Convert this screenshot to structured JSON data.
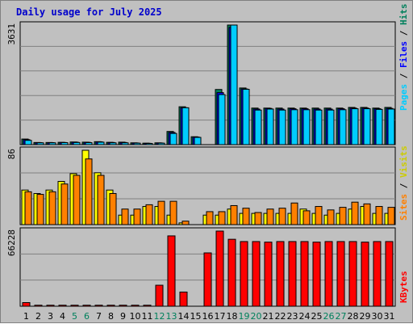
{
  "chart_data": [
    {
      "type": "bar",
      "title": "Daily usage for July 2025",
      "categories": [
        "1",
        "2",
        "3",
        "4",
        "5",
        "6",
        "7",
        "8",
        "9",
        "10",
        "11",
        "12",
        "13",
        "14",
        "15",
        "16",
        "17",
        "18",
        "19",
        "20",
        "21",
        "22",
        "23",
        "24",
        "25",
        "26",
        "27",
        "28",
        "29",
        "30",
        "31"
      ],
      "weekend_days": [
        "5",
        "6",
        "12",
        "13",
        "19",
        "20",
        "26",
        "27"
      ],
      "max_label": "3631",
      "ylim": [
        0,
        3631
      ],
      "series": [
        {
          "name": "Hits",
          "color": "#00805c",
          "values": [
            170,
            65,
            65,
            70,
            80,
            75,
            90,
            70,
            75,
            55,
            45,
            55,
            400,
            1150,
            240,
            0,
            1675,
            3631,
            1720,
            1110,
            1110,
            1110,
            1110,
            1110,
            1110,
            1110,
            1110,
            1130,
            1130,
            1110,
            1130
          ]
        },
        {
          "name": "Files",
          "color": "#0000ff",
          "values": [
            150,
            60,
            60,
            65,
            75,
            70,
            85,
            65,
            65,
            50,
            40,
            50,
            370,
            1120,
            230,
            0,
            1580,
            3560,
            1690,
            1080,
            1100,
            1080,
            1090,
            1090,
            1080,
            1080,
            1090,
            1110,
            1110,
            1090,
            1100
          ]
        },
        {
          "name": "Pages",
          "color": "#00ccff",
          "values": [
            130,
            55,
            55,
            60,
            65,
            60,
            75,
            55,
            55,
            45,
            35,
            45,
            340,
            1120,
            220,
            0,
            1520,
            3631,
            1680,
            1050,
            1080,
            1050,
            1060,
            1060,
            1050,
            1050,
            1060,
            1090,
            1090,
            1070,
            1080
          ]
        }
      ]
    },
    {
      "type": "bar",
      "categories": [
        "1",
        "2",
        "3",
        "4",
        "5",
        "6",
        "7",
        "8",
        "9",
        "10",
        "11",
        "12",
        "13",
        "14",
        "15",
        "16",
        "17",
        "18",
        "19",
        "20",
        "21",
        "22",
        "23",
        "24",
        "25",
        "26",
        "27",
        "28",
        "29",
        "30",
        "31"
      ],
      "max_label": "86",
      "ylim": [
        0,
        86
      ],
      "series": [
        {
          "name": "Visits",
          "color": "#ffff00",
          "values": [
            40,
            36,
            40,
            50,
            59,
            86,
            60,
            40,
            11,
            11,
            21,
            21,
            11,
            2,
            0,
            11,
            11,
            18,
            13,
            13,
            13,
            13,
            13,
            18,
            13,
            11,
            13,
            18,
            21,
            13,
            13
          ]
        },
        {
          "name": "Sites",
          "color": "#ff8000",
          "values": [
            38,
            35,
            38,
            47,
            57,
            76,
            57,
            38,
            11,
            11,
            20,
            20,
            11,
            2,
            0,
            11,
            11,
            18,
            13,
            13,
            13,
            13,
            13,
            18,
            13,
            11,
            13,
            18,
            21,
            13,
            13
          ]
        }
      ],
      "series_sites_full": {
        "name": "Sites",
        "color": "#ff8000",
        "values": [
          38,
          35,
          38,
          47,
          57,
          76,
          57,
          36,
          18,
          18,
          23,
          27,
          27,
          4,
          0,
          15,
          15,
          22,
          19,
          14,
          18,
          19,
          25,
          16,
          21,
          17,
          20,
          26,
          24,
          21,
          20
        ]
      }
    },
    {
      "type": "bar",
      "categories": [
        "1",
        "2",
        "3",
        "4",
        "5",
        "6",
        "7",
        "8",
        "9",
        "10",
        "11",
        "12",
        "13",
        "14",
        "15",
        "16",
        "17",
        "18",
        "19",
        "20",
        "21",
        "22",
        "23",
        "24",
        "25",
        "26",
        "27",
        "28",
        "29",
        "30",
        "31"
      ],
      "max_label": "66228",
      "ylim": [
        0,
        66228
      ],
      "series": [
        {
          "name": "KBytes",
          "color": "#ff0000",
          "values": [
            3200,
            900,
            900,
            900,
            900,
            900,
            900,
            900,
            900,
            900,
            900,
            18500,
            62000,
            12500,
            0,
            47000,
            66228,
            59000,
            57000,
            57000,
            56500,
            57000,
            57000,
            57000,
            56500,
            57000,
            57000,
            57000,
            56500,
            57000,
            57000
          ]
        }
      ]
    }
  ],
  "legend_top": {
    "hits": "Hits",
    "files": "Files",
    "pages": "Pages",
    "sep": " / "
  },
  "legend_mid": {
    "visits": "Visits",
    "sites": "Sites",
    "sep": " / "
  },
  "legend_bot": {
    "kbytes": "KBytes"
  },
  "colors": {
    "background": "#c0c0c0",
    "grid": "#808080",
    "title": "#0000cc",
    "weekday_label": "#000000",
    "weekend_label": "#00805c"
  }
}
